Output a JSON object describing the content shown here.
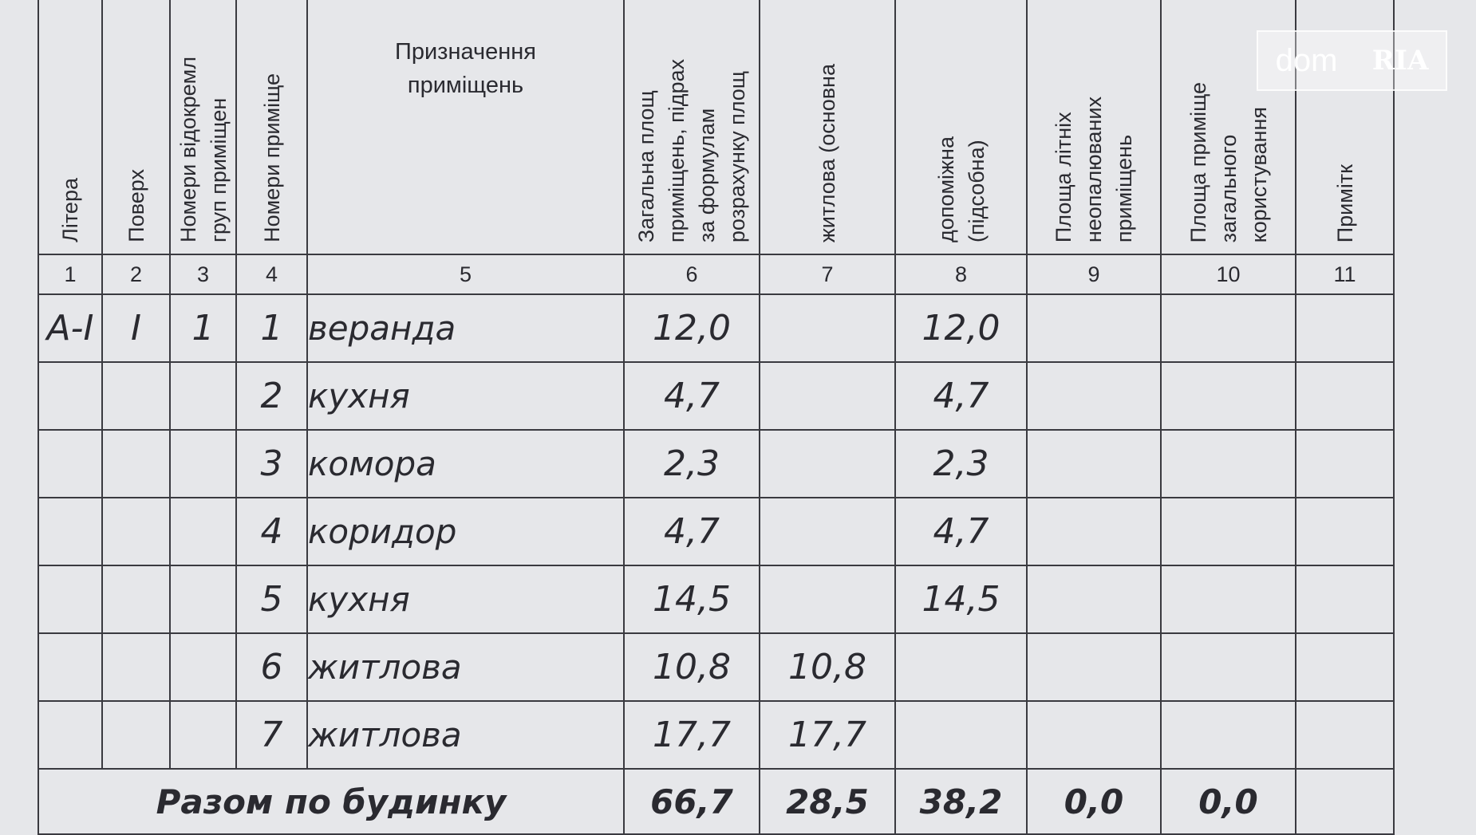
{
  "watermark": {
    "brand": "dom",
    "sub": "RIA"
  },
  "header": {
    "columns": [
      [
        "Літера"
      ],
      [
        "Поверх"
      ],
      [
        "Номери відокремл",
        "груп приміщен"
      ],
      [
        "Номери приміще"
      ],
      [
        "Призначення",
        "приміщень"
      ],
      [
        "Загальна площ",
        "приміщень, підрах",
        "за формулам",
        "розрахунку площ"
      ],
      [
        "житлова (основна"
      ],
      [
        "допоміжна",
        "(підсобна)"
      ],
      [
        "Площа літніх",
        "неопалюваних",
        "приміщень"
      ],
      [
        "Площа приміще",
        "загального",
        "користування"
      ],
      [
        "Примітк"
      ]
    ]
  },
  "column_numbers": [
    "1",
    "2",
    "3",
    "4",
    "5",
    "6",
    "7",
    "8",
    "9",
    "10",
    "11"
  ],
  "rows": [
    {
      "letter": "А-І",
      "floor": "І",
      "group": "1",
      "number": "1",
      "purpose": "веранда",
      "total": "12,0",
      "auxiliary": "12,0"
    },
    {
      "number": "2",
      "purpose": "кухня",
      "total": "4,7",
      "auxiliary": "4,7"
    },
    {
      "number": "3",
      "purpose": "комора",
      "total": "2,3",
      "auxiliary": "2,3"
    },
    {
      "number": "4",
      "purpose": "коридор",
      "total": "4,7",
      "auxiliary": "4,7"
    },
    {
      "number": "5",
      "purpose": "кухня",
      "total": "14,5",
      "auxiliary": "14,5"
    },
    {
      "number": "6",
      "purpose": "житлова",
      "total": "10,8",
      "living": "10,8"
    },
    {
      "number": "7",
      "purpose": "житлова",
      "total": "17,7",
      "living": "17,7"
    }
  ],
  "summary": {
    "label": "Разом по будинку",
    "total": "66,7",
    "living": "28,5",
    "auxiliary": "38,2",
    "summer": "0,0",
    "common": "0,0"
  }
}
